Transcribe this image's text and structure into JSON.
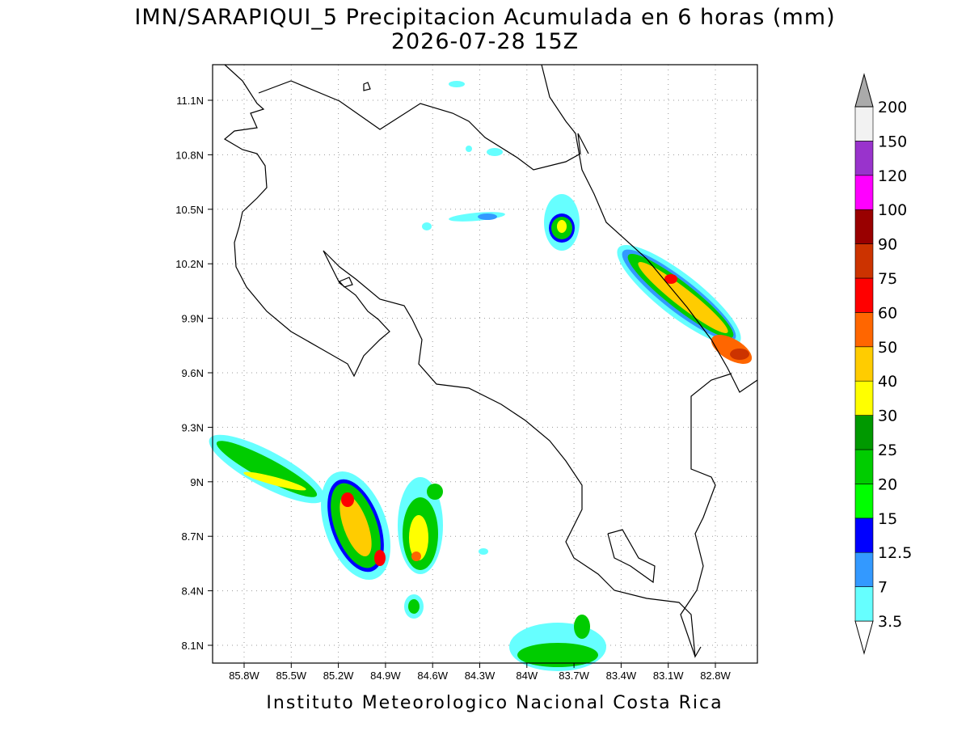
{
  "title": "IMN/SARAPIQUI_5 Precipitacion Acumulada en 6 horas (mm)",
  "subtitle": "2026-07-28 15Z",
  "lat_labels": [
    "11.1N",
    "10.8N",
    "10.5N",
    "10.2N",
    "9.9N",
    "9.6N",
    "9.3N",
    "9N",
    "8.7N",
    "8.4N",
    "8.1N"
  ],
  "lon_labels": [
    "85.8W",
    "85.5W",
    "85.2W",
    "84.9W",
    "84.6W",
    "84.3W",
    "84W",
    "83.7W",
    "83.4W",
    "83.1W",
    "82.8W"
  ],
  "colorbar": {
    "levels": [
      "3.5",
      "7",
      "12.5",
      "15",
      "20",
      "25",
      "30",
      "40",
      "50",
      "60",
      "75",
      "90",
      "100",
      "120",
      "150",
      "200"
    ],
    "colors": [
      "#ffffff",
      "#66ffff",
      "#3399ff",
      "#0000ff",
      "#00ff00",
      "#00cc00",
      "#009900",
      "#ffff00",
      "#ffcc00",
      "#ff6600",
      "#ff0000",
      "#cc3300",
      "#990000",
      "#ff00ff",
      "#9933cc",
      "#f2f2f2",
      "#aaaaaa"
    ]
  },
  "footer": "Instituto Meteorologico Nacional Costa Rica"
}
